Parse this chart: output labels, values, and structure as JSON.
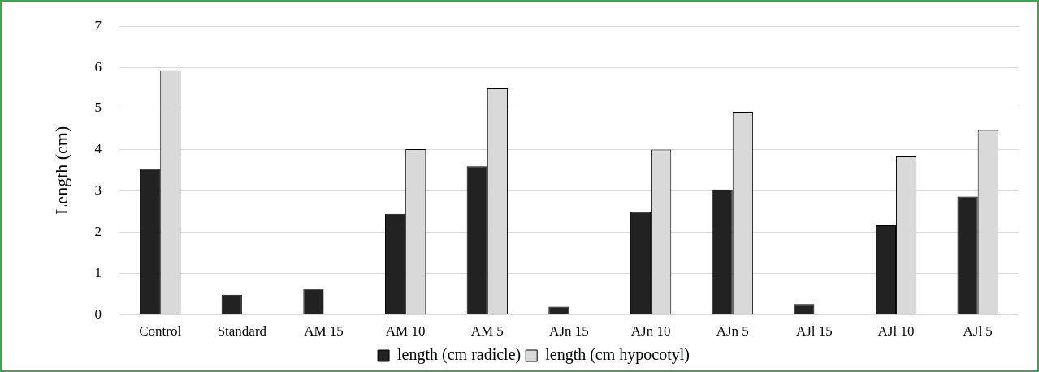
{
  "chart_data": {
    "type": "bar",
    "ylabel": "Length (cm)",
    "categories": [
      "Control",
      "Standard",
      "AM 15",
      "AM 10",
      "AM 5",
      "AJn 15",
      "AJn 10",
      "AJn 5",
      "AJl 15",
      "AJl 10",
      "AJl 5"
    ],
    "series": [
      {
        "name": "length (cm radicle)",
        "color": "#222222",
        "values": [
          3.54,
          0.49,
          0.63,
          2.45,
          3.6,
          0.2,
          2.5,
          3.04,
          0.26,
          2.17,
          2.87
        ]
      },
      {
        "name": "length (cm hypocotyl)",
        "color": "#d9d9d9",
        "values": [
          5.93,
          null,
          null,
          4.02,
          5.49,
          null,
          4.01,
          4.92,
          null,
          3.84,
          4.48
        ]
      }
    ],
    "ylim": [
      0,
      7
    ],
    "yticks": [
      0,
      1,
      2,
      3,
      4,
      5,
      6,
      7
    ],
    "grid": "y",
    "legend": "bottom"
  }
}
